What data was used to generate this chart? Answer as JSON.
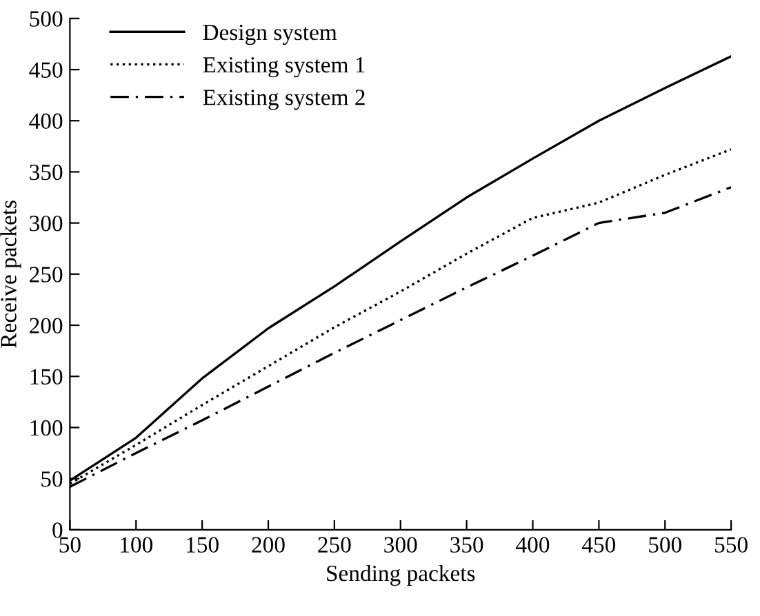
{
  "chart_data": {
    "type": "line",
    "xlabel": "Sending packets",
    "ylabel": "Receive packets",
    "x": [
      50,
      100,
      150,
      200,
      250,
      300,
      350,
      400,
      450,
      500,
      550
    ],
    "xlim": [
      50,
      550
    ],
    "xticks": [
      50,
      100,
      150,
      200,
      250,
      300,
      350,
      400,
      450,
      500,
      550
    ],
    "ylim": [
      0,
      500
    ],
    "yticks": [
      0,
      50,
      100,
      150,
      200,
      250,
      300,
      350,
      400,
      450,
      500
    ],
    "grid": false,
    "legend": "top left",
    "marker": "none",
    "series": [
      {
        "name": "Design system",
        "color": "#000000",
        "line_style": "solid",
        "values": [
          48,
          90,
          148,
          197,
          238,
          282,
          325,
          363,
          400,
          432,
          463
        ]
      },
      {
        "name": "Existing system 1",
        "color": "#000000",
        "line_style": "dotted",
        "values": [
          45,
          83,
          122,
          160,
          198,
          233,
          270,
          305,
          320,
          347,
          372
        ]
      },
      {
        "name": "Existing system 2",
        "color": "#000000",
        "line_style": "dashdot",
        "values": [
          42,
          75,
          107,
          140,
          173,
          205,
          237,
          268,
          300,
          310,
          335
        ]
      }
    ]
  }
}
